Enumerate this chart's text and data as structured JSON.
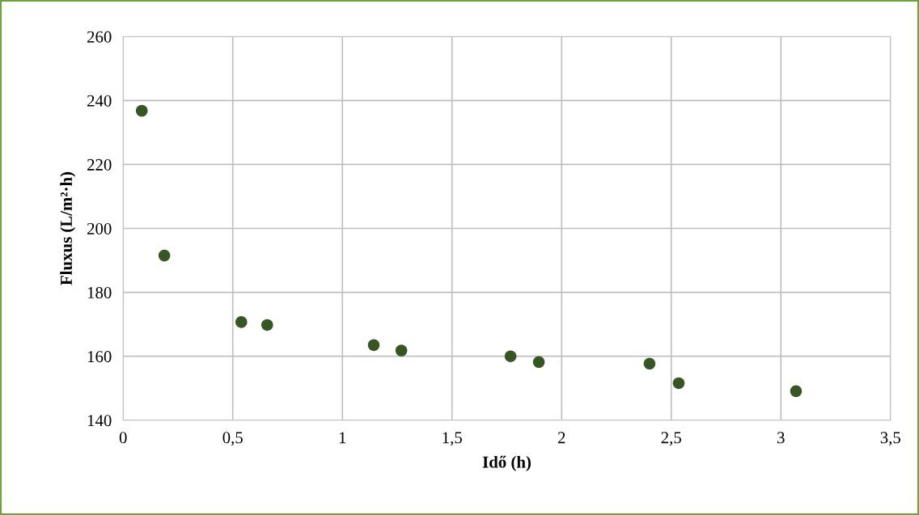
{
  "chart_data": {
    "type": "scatter",
    "xlabel": "Idő (h)",
    "ylabel": "Fluxus (L/m²·h)",
    "x": [
      0.085,
      0.188,
      0.539,
      0.657,
      1.143,
      1.269,
      1.767,
      1.896,
      2.401,
      2.534,
      3.069
    ],
    "series": [
      {
        "color": "#375623",
        "values": [
          236.8,
          191.5,
          170.7,
          169.8,
          163.5,
          161.8,
          160.0,
          158.2,
          157.7,
          151.6,
          149.1
        ]
      }
    ],
    "xlim": [
      0,
      3.5
    ],
    "ylim": [
      140,
      260
    ],
    "xticks": [
      0,
      {
        "value": 0.5,
        "label": "0,5"
      },
      1,
      {
        "value": 1.5,
        "label": "1,5"
      },
      2,
      {
        "value": 2.5,
        "label": "2,5"
      },
      3,
      {
        "value": 3.5,
        "label": "3,5"
      }
    ],
    "yticks": [
      140,
      160,
      180,
      200,
      220,
      240,
      260
    ],
    "grid": true,
    "marker": "circle"
  }
}
